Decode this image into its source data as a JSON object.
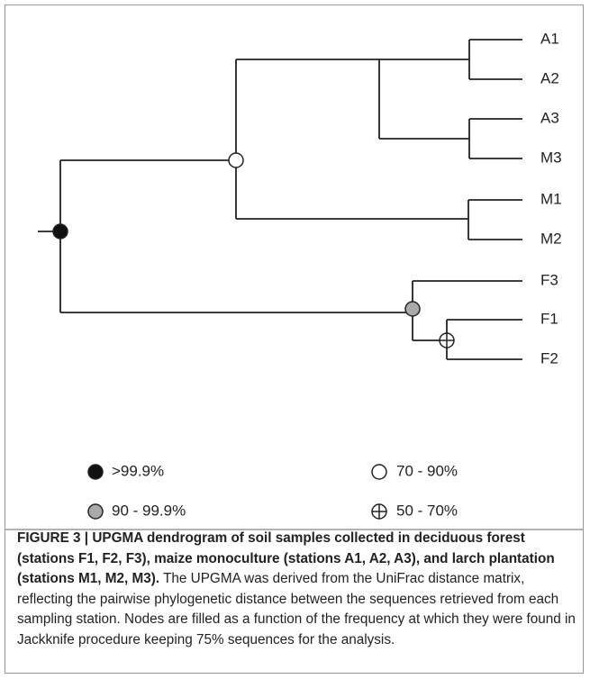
{
  "leaves": [
    "A1",
    "A2",
    "A3",
    "M3",
    "M1",
    "M2",
    "F3",
    "F1",
    "F2"
  ],
  "legend": [
    ">99.9%",
    "70 - 90%",
    "90 - 99.9%",
    "50 - 70%"
  ],
  "caption": {
    "title": "FIGURE 3 | UPGMA dendrogram of soil samples collected in deciduous forest (stations F1, F2, F3), maize monoculture (stations A1, A2, A3), and larch plantation (stations M1, M2, M3).",
    "body": "The UPGMA was derived from the UniFrac distance matrix, reflecting the pairwise phylogenetic distance between the sequences retrieved from each sampling station. Nodes are filled as a function of the frequency at which they were found in Jackknife procedure keeping 75% sequences for the analysis."
  }
}
